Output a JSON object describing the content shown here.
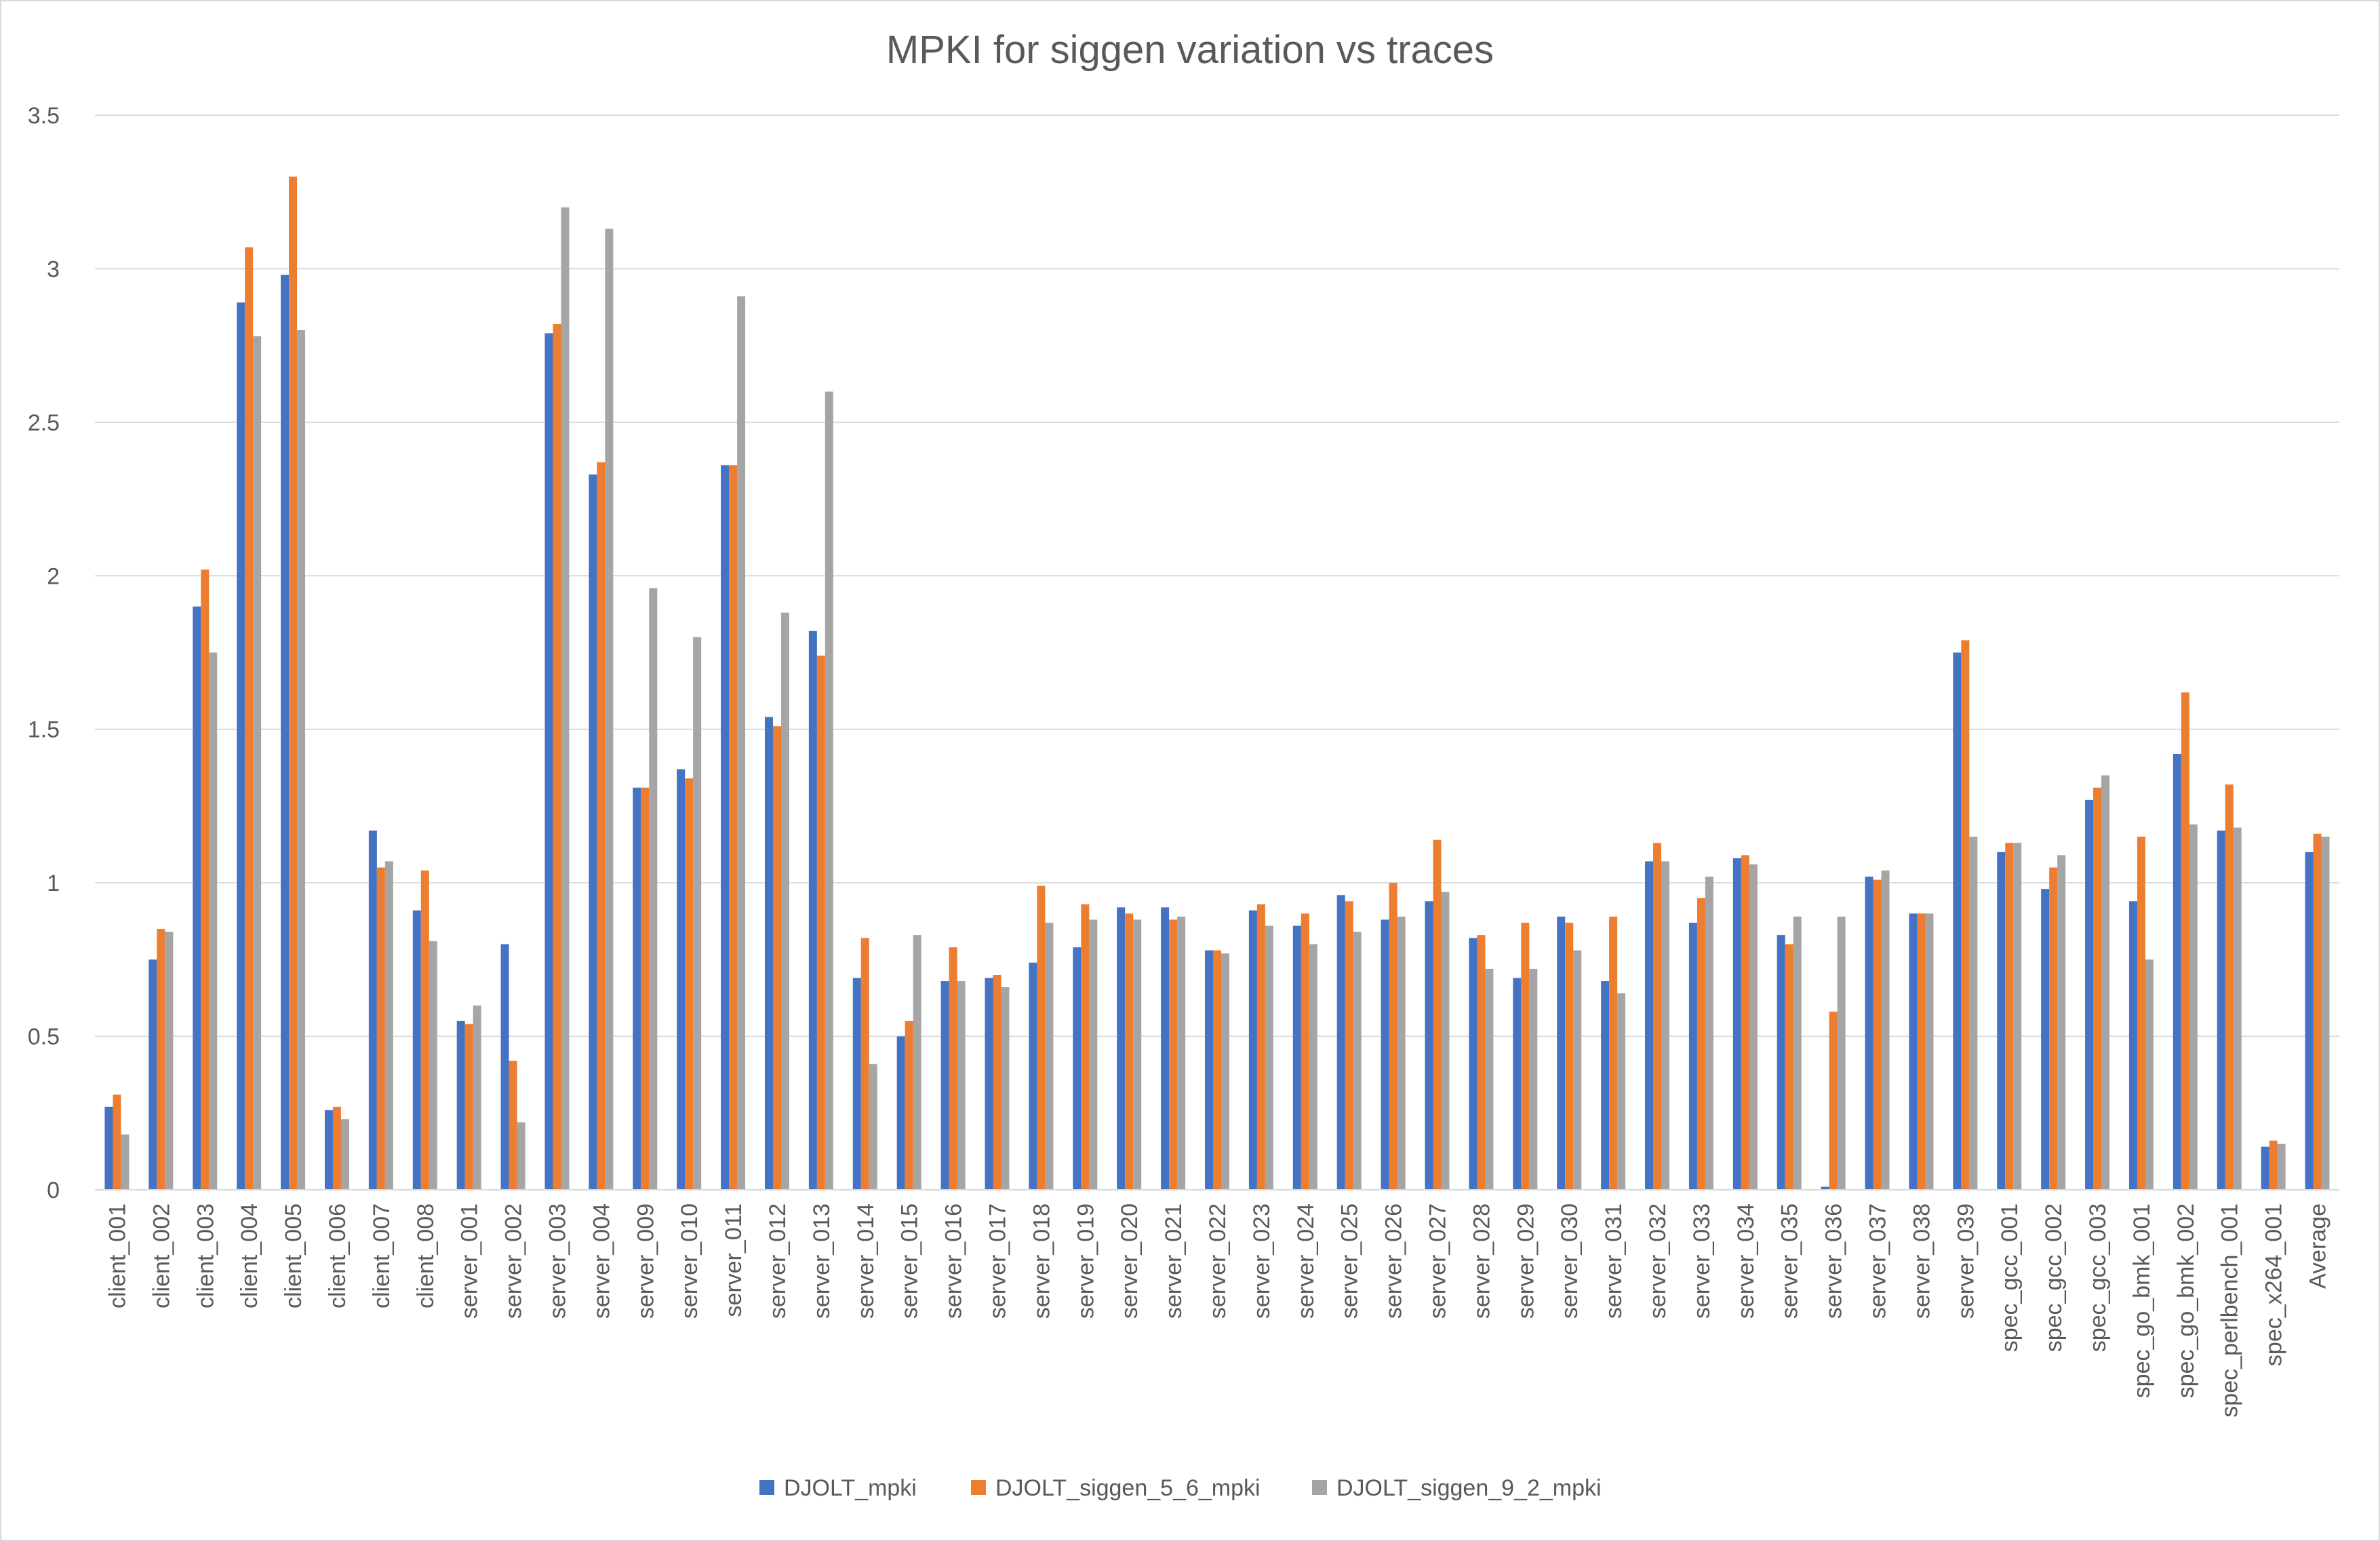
{
  "chart_data": {
    "type": "bar",
    "title": "MPKI for siggen variation vs traces",
    "xlabel": "",
    "ylabel": "",
    "ylim": [
      0,
      3.5
    ],
    "yticks": [
      0,
      0.5,
      1,
      1.5,
      2,
      2.5,
      3,
      3.5
    ],
    "ytick_labels": [
      "0",
      "0.5",
      "1",
      "1.5",
      "2",
      "2.5",
      "3",
      "3.5"
    ],
    "grid": true,
    "legend_position": "bottom",
    "categories": [
      "client_001",
      "client_002",
      "client_003",
      "client_004",
      "client_005",
      "client_006",
      "client_007",
      "client_008",
      "server_001",
      "server_002",
      "server_003",
      "server_004",
      "server_009",
      "server_010",
      "server_011",
      "server_012",
      "server_013",
      "server_014",
      "server_015",
      "server_016",
      "server_017",
      "server_018",
      "server_019",
      "server_020",
      "server_021",
      "server_022",
      "server_023",
      "server_024",
      "server_025",
      "server_026",
      "server_027",
      "server_028",
      "server_029",
      "server_030",
      "server_031",
      "server_032",
      "server_033",
      "server_034",
      "server_035",
      "server_036",
      "server_037",
      "server_038",
      "server_039",
      "spec_gcc_001",
      "spec_gcc_002",
      "spec_gcc_003",
      "spec_go_bmk_001",
      "spec_go_bmk_002",
      "spec_perlbench_001",
      "spec_x264_001",
      "Average"
    ],
    "series": [
      {
        "name": "DJOLT_mpki",
        "color": "#4472C4",
        "values": [
          0.27,
          0.75,
          1.9,
          2.89,
          2.98,
          0.26,
          1.17,
          0.91,
          0.55,
          0.8,
          2.79,
          2.33,
          1.31,
          1.37,
          2.36,
          1.54,
          1.82,
          0.69,
          0.5,
          0.68,
          0.69,
          0.74,
          0.79,
          0.92,
          0.92,
          0.78,
          0.91,
          0.86,
          0.96,
          0.88,
          0.94,
          0.82,
          0.69,
          0.89,
          0.68,
          1.07,
          0.87,
          1.08,
          0.83,
          0.01,
          1.02,
          0.9,
          1.75,
          1.1,
          0.98,
          1.27,
          0.94,
          1.42,
          1.17,
          0.14,
          1.1
        ]
      },
      {
        "name": "DJOLT_siggen_5_6_mpki",
        "color": "#ED7D31",
        "values": [
          0.31,
          0.85,
          2.02,
          3.07,
          3.3,
          0.27,
          1.05,
          1.04,
          0.54,
          0.42,
          2.82,
          2.37,
          1.31,
          1.34,
          2.36,
          1.51,
          1.74,
          0.82,
          0.55,
          0.79,
          0.7,
          0.99,
          0.93,
          0.9,
          0.88,
          0.78,
          0.93,
          0.9,
          0.94,
          1.0,
          1.14,
          0.83,
          0.87,
          0.87,
          0.89,
          1.13,
          0.95,
          1.09,
          0.8,
          0.58,
          1.01,
          0.9,
          1.79,
          1.13,
          1.05,
          1.31,
          1.15,
          1.62,
          1.32,
          0.16,
          1.16
        ]
      },
      {
        "name": "DJOLT_siggen_9_2_mpki",
        "color": "#A5A5A5",
        "values": [
          0.18,
          0.84,
          1.75,
          2.78,
          2.8,
          0.23,
          1.07,
          0.81,
          0.6,
          0.22,
          3.2,
          3.13,
          1.96,
          1.8,
          2.91,
          1.88,
          2.6,
          0.41,
          0.83,
          0.68,
          0.66,
          0.87,
          0.88,
          0.88,
          0.89,
          0.77,
          0.86,
          0.8,
          0.84,
          0.89,
          0.97,
          0.72,
          0.72,
          0.78,
          0.64,
          1.07,
          1.02,
          1.06,
          0.89,
          0.89,
          1.04,
          0.9,
          1.15,
          1.13,
          1.09,
          1.35,
          0.75,
          1.19,
          1.18,
          0.15,
          1.15
        ]
      }
    ]
  }
}
